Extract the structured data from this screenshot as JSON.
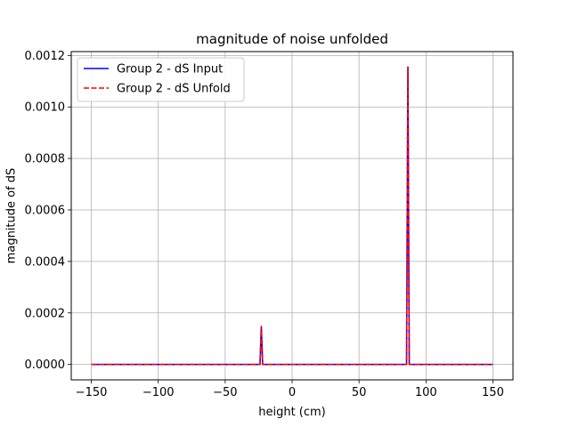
{
  "chart_data": {
    "type": "line",
    "title": "magnitude of noise unfolded",
    "xlabel": "height (cm)",
    "ylabel": "magnitude of dS",
    "xlim": [
      -165,
      165
    ],
    "ylim": [
      -6e-05,
      0.001215
    ],
    "xticks": [
      -150,
      -100,
      -50,
      0,
      50,
      100,
      150
    ],
    "xtick_labels": [
      "−150",
      "−100",
      "−50",
      "0",
      "50",
      "100",
      "150"
    ],
    "yticks": [
      0.0,
      0.0002,
      0.0004,
      0.0006,
      0.0008,
      0.001,
      0.0012
    ],
    "ytick_labels": [
      "0.0000",
      "0.0002",
      "0.0004",
      "0.0006",
      "0.0008",
      "0.0010",
      "0.0012"
    ],
    "grid": true,
    "legend_position": "top-left",
    "series": [
      {
        "name": "Group 2 - dS Input",
        "color": "#0000ff",
        "style": "solid",
        "x": [
          -150,
          -24,
          -23,
          -22,
          85.5,
          86.5,
          87.5,
          150
        ],
        "y": [
          0.0,
          0.0,
          0.000145,
          0.0,
          0.0,
          0.001155,
          0.0,
          0.0
        ]
      },
      {
        "name": "Group 2 - dS Unfold",
        "color": "#ff0000",
        "style": "dashed",
        "x": [
          -150,
          -24,
          -23,
          -22,
          85.5,
          86.5,
          87.5,
          150
        ],
        "y": [
          0.0,
          0.0,
          0.000148,
          0.0,
          0.0,
          0.001158,
          0.0,
          0.0
        ]
      }
    ]
  }
}
